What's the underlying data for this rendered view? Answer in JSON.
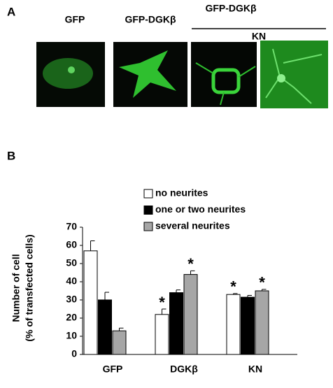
{
  "panel_a": {
    "label": "A",
    "columns": [
      "GFP",
      "GFP-DGKβ",
      "GFP-DGKβ"
    ],
    "group_label": "KN"
  },
  "chart_data": {
    "type": "bar",
    "panel_label": "B",
    "y_label": [
      "Number of cell",
      "(% of transfected cells)"
    ],
    "categories": [
      "GFP",
      "DGKβ",
      "KN"
    ],
    "series": [
      {
        "name": "no neurites",
        "color": "#ffffff",
        "values": [
          57,
          22,
          33
        ],
        "errors": [
          5.5,
          3,
          0.5
        ],
        "significance": [
          null,
          "*",
          "*"
        ]
      },
      {
        "name": "one or two neurites",
        "color": "#000000",
        "values": [
          30,
          34,
          31.5
        ],
        "errors": [
          4.2,
          1.5,
          1
        ],
        "significance": [
          null,
          null,
          null
        ]
      },
      {
        "name": "several neurites",
        "color": "#a6a6a6",
        "values": [
          13,
          44,
          35
        ],
        "errors": [
          1.5,
          2,
          0.8
        ],
        "significance": [
          null,
          "*",
          "*"
        ]
      }
    ],
    "ylim": [
      0,
      70
    ],
    "yticks": [
      0,
      10,
      20,
      30,
      40,
      50,
      60,
      70
    ],
    "grid": false
  }
}
